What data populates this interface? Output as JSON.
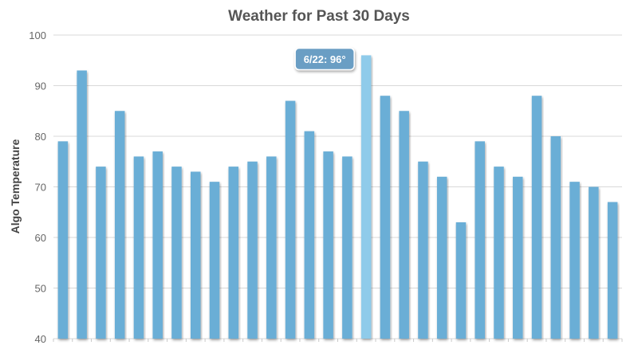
{
  "chart_data": {
    "type": "bar",
    "title": "Weather for Past 30 Days",
    "ylabel": "Algo Temperature",
    "xlabel": "",
    "ylim": [
      40,
      100
    ],
    "yticks": [
      40,
      50,
      60,
      70,
      80,
      90,
      100
    ],
    "grid": true,
    "values": [
      79,
      93,
      74,
      85,
      76,
      77,
      74,
      73,
      71,
      74,
      75,
      76,
      87,
      81,
      77,
      76,
      96,
      88,
      85,
      75,
      72,
      63,
      79,
      74,
      72,
      88,
      80,
      71,
      70,
      67
    ],
    "highlight_index": 16,
    "tooltip": "6/22: 96°",
    "colors": {
      "bar": "#6aaed6",
      "bar_highlight": "#8fcbea",
      "grid": "#d8d8d8",
      "tooltip_bg": "#6a9ec4"
    }
  }
}
